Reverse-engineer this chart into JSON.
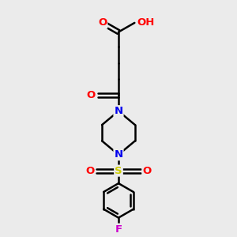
{
  "bg_color": "#ebebeb",
  "bond_color": "#000000",
  "bond_width": 1.8,
  "atom_colors": {
    "O": "#ff0000",
    "N": "#0000ee",
    "S": "#cccc00",
    "F": "#cc00cc",
    "H": "#777777",
    "C": "#000000"
  },
  "font_size": 9.5,
  "fig_size": [
    3.0,
    3.0
  ],
  "dpi": 100
}
